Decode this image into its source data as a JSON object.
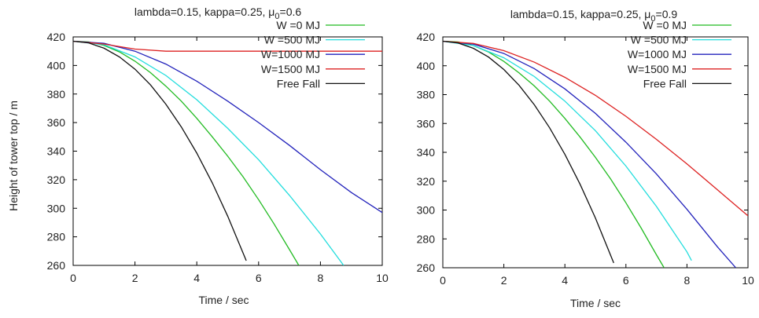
{
  "chart_data": [
    {
      "type": "line",
      "title_main": "lambda=0.15, kappa=0.25, μ",
      "title_sub": "0",
      "title_tail": "=0.6",
      "xlabel": "Time / sec",
      "ylabel": "Height of tower top / m",
      "xlim": [
        0,
        10
      ],
      "ylim": [
        260,
        420
      ],
      "xticks": [
        "0",
        "2",
        "4",
        "6",
        "8",
        "10"
      ],
      "yticks": [
        "260",
        "280",
        "300",
        "320",
        "340",
        "360",
        "380",
        "400",
        "420"
      ],
      "legend_position": "top-right",
      "series": [
        {
          "name": "W =0 MJ",
          "color": "#22bb22",
          "x": [
            0,
            0.5,
            1,
            1.5,
            2,
            2.5,
            3,
            3.5,
            4,
            4.5,
            5,
            5.5,
            6,
            6.5,
            7,
            7.3
          ],
          "y": [
            417,
            416.5,
            414,
            409.5,
            403,
            395,
            385.5,
            375,
            363,
            350,
            336.5,
            322,
            306,
            289,
            271,
            260
          ]
        },
        {
          "name": "W =500 MJ",
          "color": "#22dddd",
          "x": [
            0,
            1,
            2,
            3,
            4,
            5,
            6,
            7,
            8,
            8.75
          ],
          "y": [
            417,
            414.5,
            406,
            393,
            376,
            356,
            334,
            309,
            282,
            260
          ]
        },
        {
          "name": "W=1000 MJ",
          "color": "#2222bb",
          "x": [
            0,
            1,
            2,
            3,
            4,
            5,
            6,
            7,
            8,
            9,
            10
          ],
          "y": [
            417,
            415.5,
            410,
            401,
            389,
            375,
            360,
            344,
            327,
            311,
            297
          ]
        },
        {
          "name": "W=1500 MJ",
          "color": "#dd2222",
          "x": [
            0,
            1,
            2,
            3,
            10
          ],
          "y": [
            417,
            415,
            411.5,
            410,
            410
          ]
        },
        {
          "name": "Free Fall",
          "color": "#111111",
          "x": [
            0,
            0.5,
            1,
            1.5,
            2,
            2.5,
            3,
            3.5,
            4,
            4.5,
            5,
            5.6
          ],
          "y": [
            417,
            415.8,
            412.1,
            406,
            397.4,
            386.4,
            372.9,
            357,
            338.6,
            317.8,
            294.5,
            263.3
          ]
        }
      ]
    },
    {
      "type": "line",
      "title_main": "lambda=0.15, kappa=0.25, μ",
      "title_sub": "0",
      "title_tail": "=0.9",
      "xlabel": "Time / sec",
      "ylabel": "",
      "xlim": [
        0,
        10
      ],
      "ylim": [
        260,
        420
      ],
      "xticks": [
        "0",
        "2",
        "4",
        "6",
        "8",
        "10"
      ],
      "yticks": [
        "260",
        "280",
        "300",
        "320",
        "340",
        "360",
        "380",
        "400",
        "420"
      ],
      "legend_position": "top-right",
      "series": [
        {
          "name": "W =0 MJ",
          "color": "#22bb22",
          "x": [
            0,
            0.5,
            1,
            1.5,
            2,
            2.5,
            3,
            3.5,
            4,
            4.5,
            5,
            5.5,
            6,
            6.5,
            7,
            7.25
          ],
          "y": [
            417,
            416.5,
            414,
            409.5,
            403,
            395,
            386,
            375.5,
            363.5,
            350.5,
            336.5,
            321.5,
            305,
            287.5,
            269,
            260
          ]
        },
        {
          "name": "W =500 MJ",
          "color": "#22dddd",
          "x": [
            0,
            1,
            2,
            3,
            4,
            5,
            6,
            7,
            8,
            8.15
          ],
          "y": [
            417,
            414,
            405.5,
            392.5,
            375.5,
            355,
            330.5,
            302.5,
            271,
            265
          ]
        },
        {
          "name": "W=1000 MJ",
          "color": "#2222bb",
          "x": [
            0,
            1,
            2,
            3,
            4,
            5,
            6,
            7,
            8,
            9,
            9.6
          ],
          "y": [
            417,
            415,
            408.5,
            398,
            384,
            367,
            347,
            325,
            300.5,
            274.5,
            260
          ]
        },
        {
          "name": "W=1500 MJ",
          "color": "#dd2222",
          "x": [
            0,
            1,
            2,
            3,
            4,
            5,
            6,
            7,
            8,
            9,
            10
          ],
          "y": [
            417,
            415.5,
            410.5,
            402.5,
            392,
            379.5,
            365,
            349,
            332,
            314,
            296
          ]
        },
        {
          "name": "Free Fall",
          "color": "#111111",
          "x": [
            0,
            0.5,
            1,
            1.5,
            2,
            2.5,
            3,
            3.5,
            4,
            4.5,
            5,
            5.6
          ],
          "y": [
            417,
            415.8,
            412.1,
            406,
            397.4,
            386.4,
            372.9,
            357,
            338.6,
            317.8,
            294.5,
            263.3
          ]
        }
      ]
    }
  ]
}
